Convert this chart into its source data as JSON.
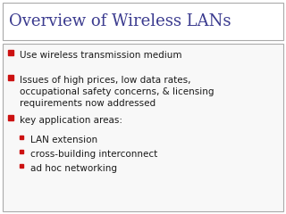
{
  "title": "Overview of Wireless LANs",
  "title_color": "#3b3b8f",
  "title_fontsize": 13,
  "title_font": "DejaVu Serif",
  "bg_color": "#ffffff",
  "title_box_edge": "#aaaaaa",
  "title_box_color": "#ffffff",
  "content_box_color": "#f8f8f8",
  "content_box_edge": "#aaaaaa",
  "bullet_color": "#1a1a1a",
  "bullet_marker_color": "#cc1111",
  "content_fontsize": 7.5,
  "content_font": "DejaVu Sans",
  "bullets": [
    {
      "level": 1,
      "text": "Use wireless transmission medium"
    },
    {
      "level": 1,
      "text": "Issues of high prices, low data rates,\noccupational safety concerns, & licensing\nrequirements now addressed"
    },
    {
      "level": 1,
      "text": "key application areas:"
    },
    {
      "level": 2,
      "text": "LAN extension"
    },
    {
      "level": 2,
      "text": "cross-building interconnect"
    },
    {
      "level": 2,
      "text": "ad hoc networking"
    }
  ]
}
